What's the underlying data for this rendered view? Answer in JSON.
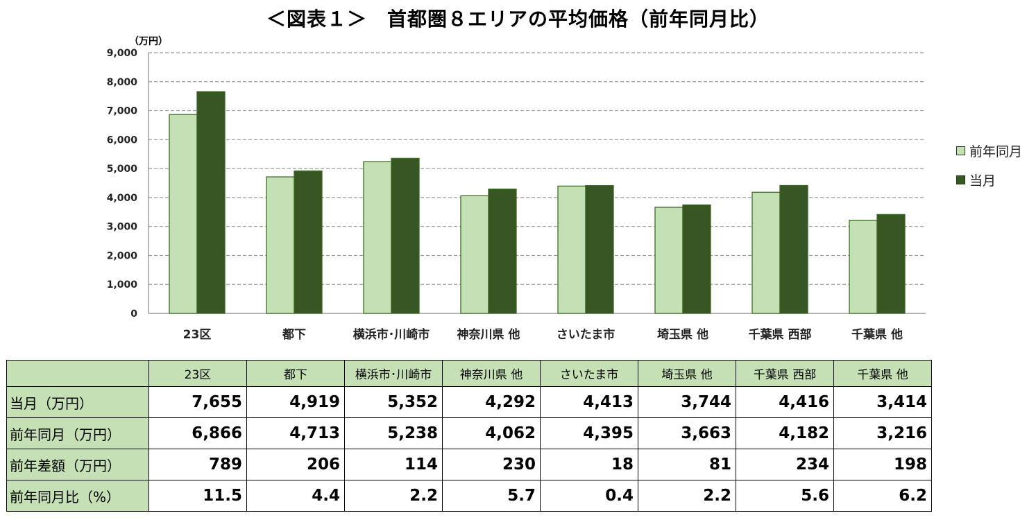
{
  "chart_data": {
    "type": "bar",
    "title": "＜図表１＞　首都圏８エリアの平均価格（前年同月比）",
    "ylabel": "（万円）",
    "xlabel": "",
    "ylim": [
      0,
      9000
    ],
    "yticks": [
      0,
      1000,
      2000,
      3000,
      4000,
      5000,
      6000,
      7000,
      8000,
      9000
    ],
    "ytick_labels": [
      "0",
      "1,000",
      "2,000",
      "3,000",
      "4,000",
      "5,000",
      "6,000",
      "7,000",
      "8,000",
      "9,000"
    ],
    "grid": true,
    "legend_position": "right",
    "categories": [
      "23区",
      "都下",
      "横浜市･川崎市",
      "神奈川県 他",
      "さいたま市",
      "埼玉県 他",
      "千葉県 西部",
      "千葉県 他"
    ],
    "series": [
      {
        "name": "前年同月",
        "color": "#c5e0b4",
        "values": [
          6866,
          4713,
          5238,
          4062,
          4395,
          3663,
          4182,
          3216
        ]
      },
      {
        "name": "当月",
        "color": "#375623",
        "values": [
          7655,
          4919,
          5352,
          4292,
          4413,
          3744,
          4416,
          3414
        ]
      }
    ]
  },
  "table": {
    "columns": [
      "23区",
      "都下",
      "横浜市･川崎市",
      "神奈川県 他",
      "さいたま市",
      "埼玉県 他",
      "千葉県 西部",
      "千葉県 他"
    ],
    "rows": [
      {
        "label": "当月（万円）",
        "values": [
          "7,655",
          "4,919",
          "5,352",
          "4,292",
          "4,413",
          "3,744",
          "4,416",
          "3,414"
        ]
      },
      {
        "label": "前年同月（万円）",
        "values": [
          "6,866",
          "4,713",
          "5,238",
          "4,062",
          "4,395",
          "3,663",
          "4,182",
          "3,216"
        ]
      },
      {
        "label": "前年差額（万円）",
        "values": [
          "789",
          "206",
          "114",
          "230",
          "18",
          "81",
          "234",
          "198"
        ]
      },
      {
        "label": "前年同月比（%）",
        "values": [
          "11.5",
          "4.4",
          "2.2",
          "5.7",
          "0.4",
          "2.2",
          "5.6",
          "6.2"
        ]
      }
    ]
  }
}
